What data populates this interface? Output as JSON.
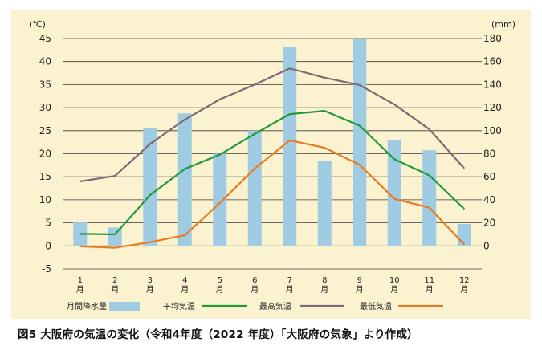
{
  "caption": "図5 大阪府の気温の変化（令和4年度（2022 年度）「大阪府の気象」より作成）",
  "colors": {
    "background": "#fbf3cf",
    "grid": "#3a3a3a",
    "precipitation": "#9fcbe3",
    "mean": "#1e9a3b",
    "max": "#7b6a74",
    "min": "#ea7a22"
  },
  "chart_data": {
    "type": "bar+line",
    "categories": [
      "1\n月",
      "2\n月",
      "3\n月",
      "4\n月",
      "5\n月",
      "6\n月",
      "7\n月",
      "8\n月",
      "9\n月",
      "10\n月",
      "11\n月",
      "12\n月"
    ],
    "left_axis": {
      "unit": "(℃)",
      "ylim": [
        -5,
        45
      ],
      "ticks": [
        45,
        40,
        35,
        30,
        25,
        20,
        15,
        10,
        5,
        0,
        -5
      ]
    },
    "right_axis": {
      "unit": "(mm)",
      "ylim": [
        -20,
        180
      ],
      "ticks": [
        180,
        160,
        140,
        120,
        100,
        80,
        60,
        40,
        20,
        0
      ]
    },
    "grid": true,
    "legend_position": "bottom",
    "series": [
      {
        "name": "月間降水量",
        "kind": "bar",
        "axis": "right",
        "color": "#9fcbe3",
        "values": [
          21,
          16,
          102,
          115,
          80,
          100,
          173,
          74,
          180,
          92,
          83,
          19
        ]
      },
      {
        "name": "平均気温",
        "kind": "line",
        "axis": "left",
        "color": "#1e9a3b",
        "values": [
          2.6,
          2.5,
          11.0,
          16.7,
          19.8,
          24.3,
          28.6,
          29.3,
          26.1,
          18.8,
          15.3,
          8.0
        ]
      },
      {
        "name": "最高気温",
        "kind": "line",
        "axis": "left",
        "color": "#7b6a74",
        "values": [
          14.0,
          15.2,
          22.1,
          27.4,
          31.8,
          35.0,
          38.5,
          36.5,
          34.9,
          30.7,
          25.3,
          16.8
        ]
      },
      {
        "name": "最低気温",
        "kind": "line",
        "axis": "left",
        "color": "#ea7a22",
        "values": [
          -0.1,
          -0.4,
          0.8,
          2.3,
          9.3,
          16.8,
          22.9,
          21.3,
          17.6,
          10.2,
          8.3,
          0.3
        ]
      }
    ]
  }
}
